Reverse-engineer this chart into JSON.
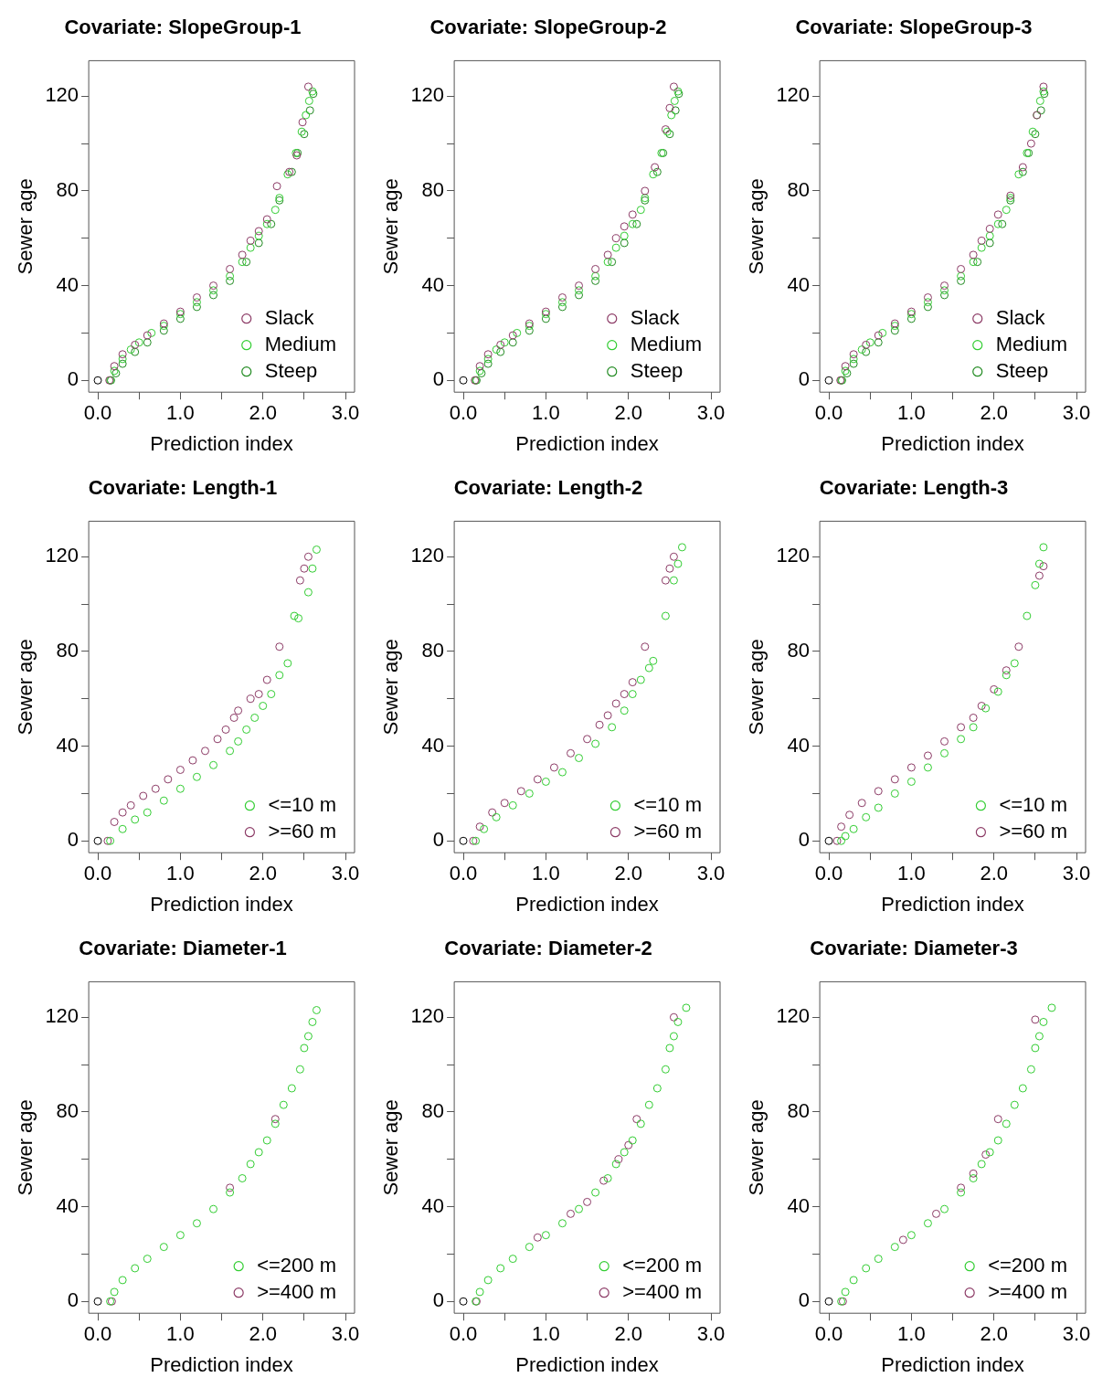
{
  "chart_data": [
    {
      "type": "scatter",
      "title": "Covariate: SlopeGroup-1",
      "xlabel": "Prediction index",
      "ylabel": "Sewer age",
      "xlim": [
        -0.11,
        3.11
      ],
      "ylim": [
        -5,
        135
      ],
      "xticks": [
        {
          "value": 0,
          "label": "0.0"
        },
        {
          "value": 0.5,
          "label": null
        },
        {
          "value": 1,
          "label": "1.0"
        },
        {
          "value": 1.5,
          "label": null
        },
        {
          "value": 2,
          "label": "2.0"
        },
        {
          "value": 2.5,
          "label": null
        },
        {
          "value": 3,
          "label": "3.0"
        }
      ],
      "yticks": [
        0,
        {
          "value": 20,
          "label": null
        },
        40,
        {
          "value": 60,
          "label": null
        },
        80,
        {
          "value": 100,
          "label": null
        },
        120
      ],
      "marker": "circle",
      "legend": "bottom right",
      "series": [
        {
          "color": "#000000",
          "x": [
            0
          ],
          "values": [
            0
          ]
        },
        {
          "name": "Slack",
          "color": "#8c3b66",
          "x": [
            0.14,
            0.2,
            0.3,
            0.45,
            0.6,
            0.8,
            1.0,
            1.2,
            1.4,
            1.6,
            1.75,
            1.85,
            1.95,
            2.05,
            2.17,
            2.32,
            2.41,
            2.48,
            2.55
          ],
          "values": [
            0,
            6,
            11,
            15,
            19,
            24,
            29,
            35,
            40,
            47,
            53,
            59,
            63,
            68,
            82,
            88,
            95,
            109,
            124
          ]
        },
        {
          "name": "Medium",
          "color": "#32cd32",
          "x": [
            0.15,
            0.2,
            0.3,
            0.4,
            0.5,
            0.65,
            0.8,
            1.0,
            1.2,
            1.4,
            1.6,
            1.75,
            1.85,
            1.95,
            2.05,
            2.15,
            2.2,
            2.3,
            2.4,
            2.47,
            2.52,
            2.56,
            2.6
          ],
          "values": [
            0,
            4,
            9,
            13,
            16,
            20,
            23,
            28,
            33,
            38,
            44,
            50,
            56,
            61,
            66,
            72,
            77,
            87,
            96,
            105,
            112,
            118,
            122
          ]
        },
        {
          "name": "Steep",
          "color": "#228b22",
          "x": [
            0.16,
            0.22,
            0.3,
            0.45,
            0.6,
            0.8,
            1.0,
            1.2,
            1.4,
            1.6,
            1.8,
            1.95,
            2.1,
            2.2,
            2.35,
            2.42,
            2.5,
            2.57,
            2.61
          ],
          "values": [
            0,
            3,
            7,
            12,
            16,
            21,
            26,
            31,
            36,
            42,
            50,
            58,
            66,
            76,
            88,
            96,
            104,
            114,
            121
          ]
        }
      ]
    },
    {
      "type": "scatter",
      "title": "Covariate: SlopeGroup-2",
      "xlabel": "Prediction index",
      "ylabel": "Sewer age",
      "xlim": [
        -0.11,
        3.11
      ],
      "ylim": [
        -5,
        135
      ],
      "xticks": [
        {
          "value": 0,
          "label": "0.0"
        },
        {
          "value": 0.5,
          "label": null
        },
        {
          "value": 1,
          "label": "1.0"
        },
        {
          "value": 1.5,
          "label": null
        },
        {
          "value": 2,
          "label": "2.0"
        },
        {
          "value": 2.5,
          "label": null
        },
        {
          "value": 3,
          "label": "3.0"
        }
      ],
      "yticks": [
        0,
        {
          "value": 20,
          "label": null
        },
        40,
        {
          "value": 60,
          "label": null
        },
        80,
        {
          "value": 100,
          "label": null
        },
        120
      ],
      "marker": "circle",
      "legend": "bottom right",
      "series": [
        {
          "color": "#000000",
          "x": [
            0
          ],
          "values": [
            0
          ]
        },
        {
          "name": "Slack",
          "color": "#8c3b66",
          "x": [
            0.14,
            0.2,
            0.3,
            0.45,
            0.6,
            0.8,
            1.0,
            1.2,
            1.4,
            1.6,
            1.75,
            1.85,
            1.95,
            2.05,
            2.2,
            2.32,
            2.45,
            2.5,
            2.55
          ],
          "values": [
            0,
            6,
            11,
            15,
            19,
            24,
            29,
            35,
            40,
            47,
            53,
            60,
            65,
            70,
            80,
            90,
            106,
            115,
            124
          ]
        },
        {
          "name": "Medium",
          "color": "#32cd32",
          "x": [
            0.15,
            0.2,
            0.3,
            0.4,
            0.5,
            0.65,
            0.8,
            1.0,
            1.2,
            1.4,
            1.6,
            1.75,
            1.85,
            1.95,
            2.05,
            2.15,
            2.2,
            2.3,
            2.4,
            2.47,
            2.52,
            2.56,
            2.6
          ],
          "values": [
            0,
            4,
            9,
            13,
            16,
            20,
            23,
            28,
            33,
            38,
            44,
            50,
            56,
            61,
            66,
            72,
            77,
            87,
            96,
            105,
            112,
            118,
            122
          ]
        },
        {
          "name": "Steep",
          "color": "#228b22",
          "x": [
            0.16,
            0.22,
            0.3,
            0.45,
            0.6,
            0.8,
            1.0,
            1.2,
            1.4,
            1.6,
            1.8,
            1.95,
            2.1,
            2.2,
            2.35,
            2.42,
            2.5,
            2.57,
            2.61
          ],
          "values": [
            0,
            3,
            7,
            12,
            16,
            21,
            26,
            31,
            36,
            42,
            50,
            58,
            66,
            76,
            88,
            96,
            104,
            114,
            121
          ]
        }
      ]
    },
    {
      "type": "scatter",
      "title": "Covariate: SlopeGroup-3",
      "xlabel": "Prediction index",
      "ylabel": "Sewer age",
      "xlim": [
        -0.11,
        3.11
      ],
      "ylim": [
        -5,
        135
      ],
      "xticks": [
        {
          "value": 0,
          "label": "0.0"
        },
        {
          "value": 0.5,
          "label": null
        },
        {
          "value": 1,
          "label": "1.0"
        },
        {
          "value": 1.5,
          "label": null
        },
        {
          "value": 2,
          "label": "2.0"
        },
        {
          "value": 2.5,
          "label": null
        },
        {
          "value": 3,
          "label": "3.0"
        }
      ],
      "yticks": [
        0,
        {
          "value": 20,
          "label": null
        },
        40,
        {
          "value": 60,
          "label": null
        },
        80,
        {
          "value": 100,
          "label": null
        },
        120
      ],
      "marker": "circle",
      "legend": "bottom right",
      "series": [
        {
          "color": "#000000",
          "x": [
            0
          ],
          "values": [
            0
          ]
        },
        {
          "name": "Slack",
          "color": "#8c3b66",
          "x": [
            0.14,
            0.2,
            0.3,
            0.45,
            0.6,
            0.8,
            1.0,
            1.2,
            1.4,
            1.6,
            1.75,
            1.85,
            1.95,
            2.05,
            2.2,
            2.35,
            2.45,
            2.52,
            2.6
          ],
          "values": [
            0,
            6,
            11,
            15,
            19,
            24,
            29,
            35,
            40,
            47,
            53,
            59,
            64,
            70,
            78,
            90,
            100,
            112,
            124
          ]
        },
        {
          "name": "Medium",
          "color": "#32cd32",
          "x": [
            0.15,
            0.2,
            0.3,
            0.4,
            0.5,
            0.65,
            0.8,
            1.0,
            1.2,
            1.4,
            1.6,
            1.75,
            1.85,
            1.95,
            2.05,
            2.15,
            2.2,
            2.3,
            2.4,
            2.47,
            2.52,
            2.56,
            2.6
          ],
          "values": [
            0,
            4,
            9,
            13,
            16,
            20,
            23,
            28,
            33,
            38,
            44,
            50,
            56,
            61,
            66,
            72,
            77,
            87,
            96,
            105,
            112,
            118,
            122
          ]
        },
        {
          "name": "Steep",
          "color": "#228b22",
          "x": [
            0.16,
            0.22,
            0.3,
            0.45,
            0.6,
            0.8,
            1.0,
            1.2,
            1.4,
            1.6,
            1.8,
            1.95,
            2.1,
            2.2,
            2.35,
            2.42,
            2.5,
            2.57,
            2.61
          ],
          "values": [
            0,
            3,
            7,
            12,
            16,
            21,
            26,
            31,
            36,
            42,
            50,
            58,
            66,
            76,
            88,
            96,
            104,
            114,
            121
          ]
        }
      ]
    },
    {
      "type": "scatter",
      "title": "Covariate: Length-1",
      "xlabel": "Prediction index",
      "ylabel": "Sewer age",
      "xlim": [
        -0.11,
        3.11
      ],
      "ylim": [
        -5,
        135
      ],
      "xticks": [
        {
          "value": 0,
          "label": "0.0"
        },
        {
          "value": 0.5,
          "label": null
        },
        {
          "value": 1,
          "label": "1.0"
        },
        {
          "value": 1.5,
          "label": null
        },
        {
          "value": 2,
          "label": "2.0"
        },
        {
          "value": 2.5,
          "label": null
        },
        {
          "value": 3,
          "label": "3.0"
        }
      ],
      "yticks": [
        0,
        {
          "value": 20,
          "label": null
        },
        40,
        {
          "value": 60,
          "label": null
        },
        80,
        {
          "value": 100,
          "label": null
        },
        120
      ],
      "marker": "circle",
      "legend": "bottom right",
      "series": [
        {
          "color": "#000000",
          "x": [
            0
          ],
          "values": [
            0
          ]
        },
        {
          "name": "<=10 m",
          "color": "#32cd32",
          "x": [
            0.15,
            0.3,
            0.45,
            0.6,
            0.8,
            1.0,
            1.2,
            1.4,
            1.6,
            1.7,
            1.8,
            1.9,
            2.0,
            2.1,
            2.2,
            2.3,
            2.38,
            2.43,
            2.55,
            2.6,
            2.65
          ],
          "values": [
            0,
            5,
            9,
            12,
            17,
            22,
            27,
            32,
            38,
            42,
            47,
            52,
            57,
            62,
            70,
            75,
            95,
            94,
            105,
            115,
            123
          ]
        },
        {
          "name": ">=60 m",
          "color": "#8c3b66",
          "x": [
            0.12,
            0.2,
            0.3,
            0.4,
            0.55,
            0.7,
            0.85,
            1.0,
            1.15,
            1.3,
            1.45,
            1.55,
            1.65,
            1.7,
            1.85,
            1.95,
            2.05,
            2.2,
            2.45,
            2.5,
            2.55
          ],
          "values": [
            0,
            8,
            12,
            15,
            19,
            22,
            26,
            30,
            34,
            38,
            43,
            47,
            52,
            55,
            60,
            62,
            68,
            82,
            110,
            115,
            120
          ]
        }
      ]
    },
    {
      "type": "scatter",
      "title": "Covariate: Length-2",
      "xlabel": "Prediction index",
      "ylabel": "Sewer age",
      "xlim": [
        -0.11,
        3.11
      ],
      "ylim": [
        -5,
        135
      ],
      "xticks": [
        {
          "value": 0,
          "label": "0.0"
        },
        {
          "value": 0.5,
          "label": null
        },
        {
          "value": 1,
          "label": "1.0"
        },
        {
          "value": 1.5,
          "label": null
        },
        {
          "value": 2,
          "label": "2.0"
        },
        {
          "value": 2.5,
          "label": null
        },
        {
          "value": 3,
          "label": "3.0"
        }
      ],
      "yticks": [
        0,
        {
          "value": 20,
          "label": null
        },
        40,
        {
          "value": 60,
          "label": null
        },
        80,
        {
          "value": 100,
          "label": null
        },
        120
      ],
      "marker": "circle",
      "legend": "bottom right",
      "series": [
        {
          "color": "#000000",
          "x": [
            0
          ],
          "values": [
            0
          ]
        },
        {
          "name": "<=10 m",
          "color": "#32cd32",
          "x": [
            0.15,
            0.25,
            0.4,
            0.6,
            0.8,
            1.0,
            1.2,
            1.4,
            1.6,
            1.8,
            1.95,
            2.05,
            2.15,
            2.25,
            2.3,
            2.45,
            2.55,
            2.6,
            2.65
          ],
          "values": [
            0,
            5,
            10,
            15,
            20,
            25,
            29,
            35,
            41,
            48,
            55,
            62,
            68,
            73,
            76,
            95,
            110,
            117,
            124
          ]
        },
        {
          "name": ">=60 m",
          "color": "#8c3b66",
          "x": [
            0.12,
            0.2,
            0.35,
            0.5,
            0.7,
            0.9,
            1.1,
            1.3,
            1.5,
            1.65,
            1.75,
            1.85,
            1.95,
            2.05,
            2.2,
            2.45,
            2.5,
            2.55
          ],
          "values": [
            0,
            6,
            12,
            16,
            21,
            26,
            31,
            37,
            43,
            49,
            53,
            58,
            62,
            67,
            82,
            110,
            115,
            120
          ]
        }
      ]
    },
    {
      "type": "scatter",
      "title": "Covariate: Length-3",
      "xlabel": "Prediction index",
      "ylabel": "Sewer age",
      "xlim": [
        -0.11,
        3.11
      ],
      "ylim": [
        -5,
        135
      ],
      "xticks": [
        {
          "value": 0,
          "label": "0.0"
        },
        {
          "value": 0.5,
          "label": null
        },
        {
          "value": 1,
          "label": "1.0"
        },
        {
          "value": 1.5,
          "label": null
        },
        {
          "value": 2,
          "label": "2.0"
        },
        {
          "value": 2.5,
          "label": null
        },
        {
          "value": 3,
          "label": "3.0"
        }
      ],
      "yticks": [
        0,
        {
          "value": 20,
          "label": null
        },
        40,
        {
          "value": 60,
          "label": null
        },
        80,
        {
          "value": 100,
          "label": null
        },
        120
      ],
      "marker": "circle",
      "legend": "bottom right",
      "series": [
        {
          "color": "#000000",
          "x": [
            0
          ],
          "values": [
            0
          ]
        },
        {
          "name": "<=10 m",
          "color": "#32cd32",
          "x": [
            0.15,
            0.2,
            0.3,
            0.45,
            0.6,
            0.8,
            1.0,
            1.2,
            1.4,
            1.6,
            1.75,
            1.9,
            2.05,
            2.15,
            2.25,
            2.4,
            2.5,
            2.55,
            2.6
          ],
          "values": [
            0,
            2,
            5,
            10,
            14,
            20,
            25,
            31,
            37,
            43,
            48,
            56,
            63,
            70,
            75,
            95,
            108,
            117,
            124
          ]
        },
        {
          "name": ">=60 m",
          "color": "#8c3b66",
          "x": [
            0.1,
            0.15,
            0.25,
            0.4,
            0.6,
            0.8,
            1.0,
            1.2,
            1.4,
            1.6,
            1.75,
            1.85,
            2.0,
            2.15,
            2.3,
            2.55,
            2.6
          ],
          "values": [
            0,
            6,
            11,
            16,
            21,
            26,
            31,
            36,
            42,
            48,
            52,
            57,
            64,
            72,
            82,
            112,
            116
          ]
        }
      ]
    },
    {
      "type": "scatter",
      "title": "Covariate: Diameter-1",
      "xlabel": "Prediction index",
      "ylabel": "Sewer age",
      "xlim": [
        -0.11,
        3.11
      ],
      "ylim": [
        -5,
        135
      ],
      "xticks": [
        {
          "value": 0,
          "label": "0.0"
        },
        {
          "value": 0.5,
          "label": null
        },
        {
          "value": 1,
          "label": "1.0"
        },
        {
          "value": 1.5,
          "label": null
        },
        {
          "value": 2,
          "label": "2.0"
        },
        {
          "value": 2.5,
          "label": null
        },
        {
          "value": 3,
          "label": "3.0"
        }
      ],
      "yticks": [
        0,
        {
          "value": 20,
          "label": null
        },
        40,
        {
          "value": 60,
          "label": null
        },
        80,
        {
          "value": 100,
          "label": null
        },
        120
      ],
      "marker": "circle",
      "legend": "bottom right",
      "series": [
        {
          "color": "#000000",
          "x": [
            0
          ],
          "values": [
            0
          ]
        },
        {
          "name": "<=200 m",
          "color": "#32cd32",
          "x": [
            0.15,
            0.2,
            0.3,
            0.45,
            0.6,
            0.8,
            1.0,
            1.2,
            1.4,
            1.6,
            1.75,
            1.85,
            1.95,
            2.05,
            2.15,
            2.25,
            2.35,
            2.45,
            2.5,
            2.55,
            2.6,
            2.65
          ],
          "values": [
            0,
            4,
            9,
            14,
            18,
            23,
            28,
            33,
            39,
            46,
            52,
            58,
            63,
            68,
            75,
            83,
            90,
            98,
            107,
            112,
            118,
            123
          ]
        },
        {
          "name": ">=400 m",
          "color": "#8c3b66",
          "x": [
            0.17,
            1.6,
            2.15
          ],
          "values": [
            0,
            48,
            77
          ]
        }
      ]
    },
    {
      "type": "scatter",
      "title": "Covariate: Diameter-2",
      "xlabel": "Prediction index",
      "ylabel": "Sewer age",
      "xlim": [
        -0.11,
        3.11
      ],
      "ylim": [
        -5,
        135
      ],
      "xticks": [
        {
          "value": 0,
          "label": "0.0"
        },
        {
          "value": 0.5,
          "label": null
        },
        {
          "value": 1,
          "label": "1.0"
        },
        {
          "value": 1.5,
          "label": null
        },
        {
          "value": 2,
          "label": "2.0"
        },
        {
          "value": 2.5,
          "label": null
        },
        {
          "value": 3,
          "label": "3.0"
        }
      ],
      "yticks": [
        0,
        {
          "value": 20,
          "label": null
        },
        40,
        {
          "value": 60,
          "label": null
        },
        80,
        {
          "value": 100,
          "label": null
        },
        120
      ],
      "marker": "circle",
      "legend": "bottom right",
      "series": [
        {
          "color": "#000000",
          "x": [
            0
          ],
          "values": [
            0
          ]
        },
        {
          "name": "<=200 m",
          "color": "#32cd32",
          "x": [
            0.15,
            0.2,
            0.3,
            0.45,
            0.6,
            0.8,
            1.0,
            1.2,
            1.4,
            1.6,
            1.75,
            1.85,
            1.95,
            2.05,
            2.15,
            2.25,
            2.35,
            2.45,
            2.5,
            2.55,
            2.6,
            2.7
          ],
          "values": [
            0,
            4,
            9,
            14,
            18,
            23,
            28,
            33,
            39,
            46,
            52,
            58,
            63,
            68,
            75,
            83,
            90,
            98,
            107,
            112,
            118,
            124
          ]
        },
        {
          "name": ">=400 m",
          "color": "#8c3b66",
          "x": [
            0.16,
            0.9,
            1.3,
            1.5,
            1.7,
            1.88,
            2.0,
            2.1,
            2.55
          ],
          "values": [
            0,
            27,
            37,
            42,
            51,
            60,
            66,
            77,
            120
          ]
        }
      ]
    },
    {
      "type": "scatter",
      "title": "Covariate: Diameter-3",
      "xlabel": "Prediction index",
      "ylabel": "Sewer age",
      "xlim": [
        -0.11,
        3.11
      ],
      "ylim": [
        -5,
        135
      ],
      "xticks": [
        {
          "value": 0,
          "label": "0.0"
        },
        {
          "value": 0.5,
          "label": null
        },
        {
          "value": 1,
          "label": "1.0"
        },
        {
          "value": 1.5,
          "label": null
        },
        {
          "value": 2,
          "label": "2.0"
        },
        {
          "value": 2.5,
          "label": null
        },
        {
          "value": 3,
          "label": "3.0"
        }
      ],
      "yticks": [
        0,
        {
          "value": 20,
          "label": null
        },
        40,
        {
          "value": 60,
          "label": null
        },
        80,
        {
          "value": 100,
          "label": null
        },
        120
      ],
      "marker": "circle",
      "legend": "bottom right",
      "series": [
        {
          "color": "#000000",
          "x": [
            0
          ],
          "values": [
            0
          ]
        },
        {
          "name": "<=200 m",
          "color": "#32cd32",
          "x": [
            0.15,
            0.2,
            0.3,
            0.45,
            0.6,
            0.8,
            1.0,
            1.2,
            1.4,
            1.6,
            1.75,
            1.85,
            1.95,
            2.05,
            2.15,
            2.25,
            2.35,
            2.45,
            2.5,
            2.55,
            2.6,
            2.7
          ],
          "values": [
            0,
            4,
            9,
            14,
            18,
            23,
            28,
            33,
            39,
            46,
            52,
            58,
            63,
            68,
            75,
            83,
            90,
            98,
            107,
            112,
            118,
            124
          ]
        },
        {
          "name": ">=400 m",
          "color": "#8c3b66",
          "x": [
            0.17,
            0.9,
            1.3,
            1.6,
            1.75,
            1.9,
            2.05,
            2.5
          ],
          "values": [
            0,
            26,
            37,
            48,
            54,
            62,
            77,
            119
          ]
        }
      ]
    }
  ]
}
